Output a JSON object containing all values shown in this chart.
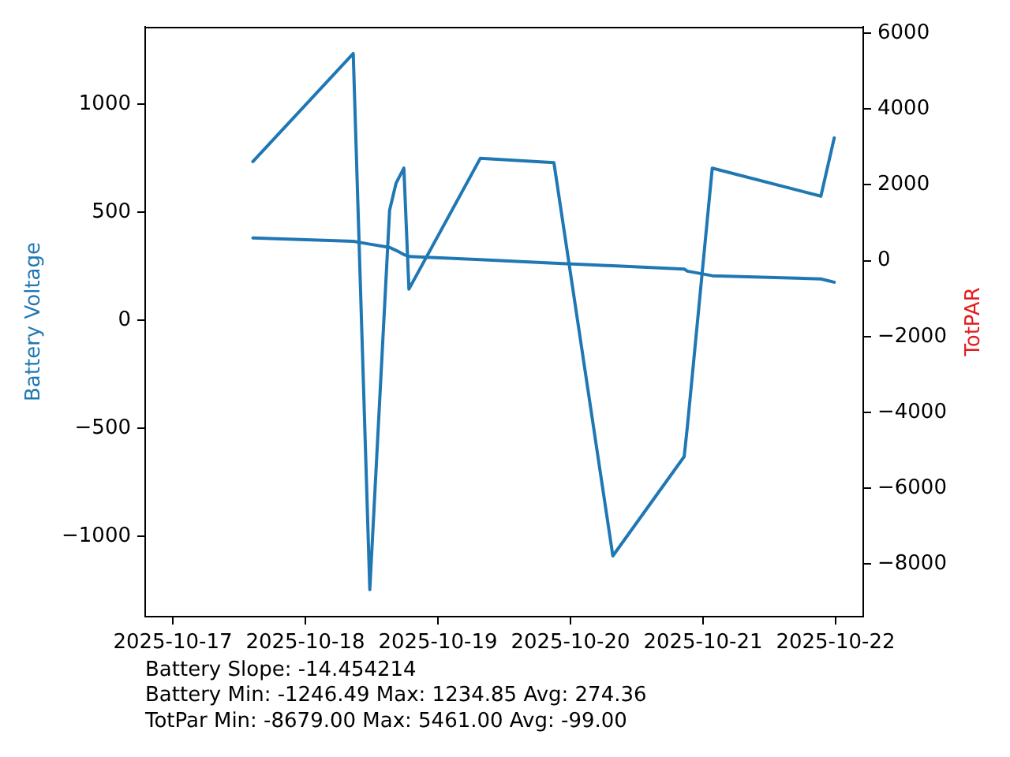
{
  "chart_data": {
    "type": "line",
    "ylabel": "Battery Voltage",
    "y2label": "TotPAR",
    "x": [
      "2025-10-17T14:30",
      "2025-10-18T08:40",
      "2025-10-18T11:40",
      "2025-10-18T15:15",
      "2025-10-18T16:25",
      "2025-10-18T17:50",
      "2025-10-18T18:45",
      "2025-10-19T07:40",
      "2025-10-19T21:00",
      "2025-10-20T07:40",
      "2025-10-20T20:35",
      "2025-10-20T21:10",
      "2025-10-21T01:40",
      "2025-10-21T21:20",
      "2025-10-21T23:45"
    ],
    "series": [
      {
        "color": "#1f77b4",
        "values": [
          735,
          1235,
          -1246,
          510,
          635,
          705,
          145,
          750,
          730,
          -1090,
          -630,
          -490,
          705,
          575,
          845
        ]
      },
      {
        "color": "#1f77b4",
        "values": [
          382,
          366,
          353,
          338,
          324,
          305,
          296,
          281,
          265,
          253,
          238,
          228,
          207,
          192,
          177
        ]
      }
    ],
    "xlim": [
      "2025-10-16T19:00",
      "2025-10-22T05:00"
    ],
    "xticks": [
      "2025-10-17",
      "2025-10-18",
      "2025-10-19",
      "2025-10-20",
      "2025-10-21",
      "2025-10-22"
    ],
    "ylim": [
      -1371,
      1359
    ],
    "yticks": [
      {
        "value": -1000,
        "label": "−1000"
      },
      {
        "value": -500,
        "label": "−500"
      },
      0,
      500,
      1000
    ],
    "y2lim": [
      -9386,
      6168
    ],
    "y2ticks": [
      {
        "value": -8000,
        "label": "−8000"
      },
      {
        "value": -6000,
        "label": "−6000"
      },
      {
        "value": -4000,
        "label": "−4000"
      },
      {
        "value": -2000,
        "label": "−2000"
      },
      0,
      2000,
      4000,
      6000
    ],
    "annotations": [
      "Battery Slope: -14.454214",
      "Battery Min: -1246.49 Max: 1234.85 Avg: 274.36",
      "TotPar Min: -8679.00 Max: 5461.00 Avg: -99.00"
    ]
  }
}
